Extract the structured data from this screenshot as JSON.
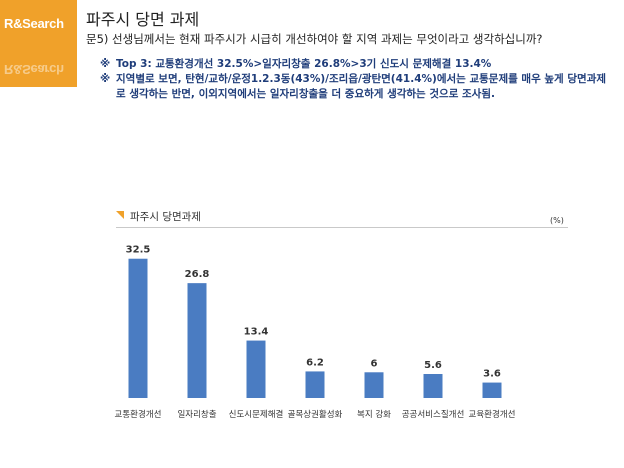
{
  "logo": {
    "text": "R&Search",
    "color": "#f0a12a"
  },
  "header": {
    "title": "파주시 당면 과제",
    "question": "문5) 선생님께서는 현재 파주시가 시급히 개선하여야 할 지역 과제는 무엇이라고 생각하십니까?"
  },
  "notes": [
    {
      "mark": "※",
      "text": "Top 3: 교통환경개선 32.5%>일자리창출 26.8%>3기 신도시 문제해결 13.4%"
    },
    {
      "mark": "※",
      "text": "지역별로 보면, 탄현/교하/운정1.2.3동(43%)/조리읍/광탄면(41.4%)에서는 교통문제를 매우 높게 당면과제로 생각하는 반면, 이외지역에서는 일자리창출을 더 중요하게 생각하는 것으로 조사됨."
    }
  ],
  "chart_data": {
    "type": "bar",
    "title": "파주시 당면과제",
    "unit": "(%)",
    "categories": [
      "교통환경개선",
      "일자리창출",
      "신도시문제해결",
      "골목상권활성화",
      "복지 강화",
      "공공서비스질개선",
      "교육환경개선"
    ],
    "values": [
      32.5,
      26.8,
      13.4,
      6.2,
      6,
      5.6,
      3.6
    ],
    "value_labels": [
      "32.5",
      "26.8",
      "13.4",
      "6.2",
      "6",
      "5.6",
      "3.6"
    ],
    "ylim": [
      0,
      35
    ],
    "grid": false,
    "bar_color": "#4a7cc2"
  }
}
